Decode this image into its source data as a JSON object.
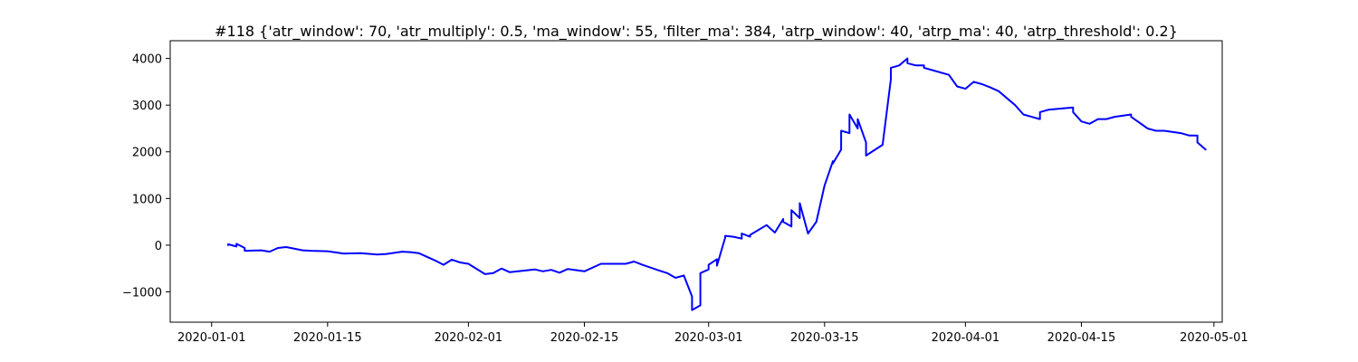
{
  "chart_data": {
    "type": "line",
    "title": "#118 {'atr_window': 70, 'atr_multiply': 0.5, 'ma_window': 55, 'filter_ma': 384, 'atrp_window': 40, 'atrp_ma': 40, 'atrp_threshold': 0.2}",
    "xlabel": "",
    "ylabel": "",
    "xlim": [
      "2019-12-27",
      "2020-05-02"
    ],
    "ylim": [
      -1650,
      4380
    ],
    "grid": false,
    "x_ticks": [
      "2020-01-01",
      "2020-01-15",
      "2020-02-01",
      "2020-02-15",
      "2020-03-01",
      "2020-03-15",
      "2020-04-01",
      "2020-04-15",
      "2020-05-01"
    ],
    "y_ticks": [
      -1000,
      0,
      1000,
      2000,
      3000,
      4000
    ],
    "series": [
      {
        "color": "#0000ff",
        "x": [
          "2020-01-03",
          "2020-01-03",
          "2020-01-04",
          "2020-01-04",
          "2020-01-05",
          "2020-01-05",
          "2020-01-07",
          "2020-01-08",
          "2020-01-09",
          "2020-01-10",
          "2020-01-12",
          "2020-01-13",
          "2020-01-15",
          "2020-01-17",
          "2020-01-19",
          "2020-01-21",
          "2020-01-22",
          "2020-01-24",
          "2020-01-25",
          "2020-01-26",
          "2020-01-28",
          "2020-01-29",
          "2020-01-30",
          "2020-01-31",
          "2020-02-01",
          "2020-02-03",
          "2020-02-04",
          "2020-02-05",
          "2020-02-06",
          "2020-02-07",
          "2020-02-09",
          "2020-02-10",
          "2020-02-11",
          "2020-02-12",
          "2020-02-13",
          "2020-02-15",
          "2020-02-17",
          "2020-02-19",
          "2020-02-20",
          "2020-02-21",
          "2020-02-22",
          "2020-02-24",
          "2020-02-25",
          "2020-02-26",
          "2020-02-27",
          "2020-02-28",
          "2020-02-28",
          "2020-02-29",
          "2020-02-29",
          "2020-03-01",
          "2020-03-01",
          "2020-03-02",
          "2020-03-02",
          "2020-03-03",
          "2020-03-03",
          "2020-03-04",
          "2020-03-05",
          "2020-03-05",
          "2020-03-06",
          "2020-03-06",
          "2020-03-08",
          "2020-03-09",
          "2020-03-10",
          "2020-03-10",
          "2020-03-11",
          "2020-03-11",
          "2020-03-12",
          "2020-03-12",
          "2020-03-13",
          "2020-03-14",
          "2020-03-15",
          "2020-03-16",
          "2020-03-16",
          "2020-03-17",
          "2020-03-17",
          "2020-03-18",
          "2020-03-18",
          "2020-03-19",
          "2020-03-19",
          "2020-03-20",
          "2020-03-20",
          "2020-03-22",
          "2020-03-23",
          "2020-03-23",
          "2020-03-24",
          "2020-03-25",
          "2020-03-25",
          "2020-03-26",
          "2020-03-27",
          "2020-03-27",
          "2020-03-28",
          "2020-03-30",
          "2020-03-31",
          "2020-04-01",
          "2020-04-02",
          "2020-04-03",
          "2020-04-04",
          "2020-04-05",
          "2020-04-07",
          "2020-04-08",
          "2020-04-09",
          "2020-04-10",
          "2020-04-10",
          "2020-04-11",
          "2020-04-14",
          "2020-04-14",
          "2020-04-15",
          "2020-04-16",
          "2020-04-17",
          "2020-04-18",
          "2020-04-19",
          "2020-04-21",
          "2020-04-21",
          "2020-04-23",
          "2020-04-24",
          "2020-04-25",
          "2020-04-27",
          "2020-04-28",
          "2020-04-29",
          "2020-04-29",
          "2020-04-30"
        ],
        "y": [
          0,
          20,
          -30,
          30,
          -60,
          -120,
          -110,
          -140,
          -60,
          -40,
          -110,
          -120,
          -130,
          -180,
          -170,
          -200,
          -190,
          -140,
          -150,
          -170,
          -330,
          -420,
          -310,
          -370,
          -400,
          -620,
          -600,
          -500,
          -580,
          -560,
          -520,
          -560,
          -530,
          -590,
          -510,
          -560,
          -400,
          -400,
          -400,
          -350,
          -420,
          -540,
          -600,
          -700,
          -650,
          -1100,
          -1390,
          -1290,
          -600,
          -520,
          -420,
          -300,
          -440,
          160,
          200,
          180,
          140,
          250,
          180,
          220,
          430,
          270,
          560,
          500,
          400,
          750,
          580,
          900,
          250,
          500,
          1280,
          1800,
          1750,
          2050,
          2450,
          2400,
          2800,
          2500,
          2700,
          2200,
          1920,
          2150,
          3550,
          3800,
          3850,
          4000,
          3900,
          3850,
          3850,
          3800,
          3750,
          3650,
          3400,
          3350,
          3500,
          3450,
          3380,
          3300,
          3000,
          2800,
          2750,
          2700,
          2850,
          2900,
          2950,
          2850,
          2650,
          2600,
          2700,
          2700,
          2750,
          2800,
          2750,
          2500,
          2450,
          2450,
          2400,
          2350,
          2350,
          2200,
          2050
        ]
      }
    ]
  }
}
